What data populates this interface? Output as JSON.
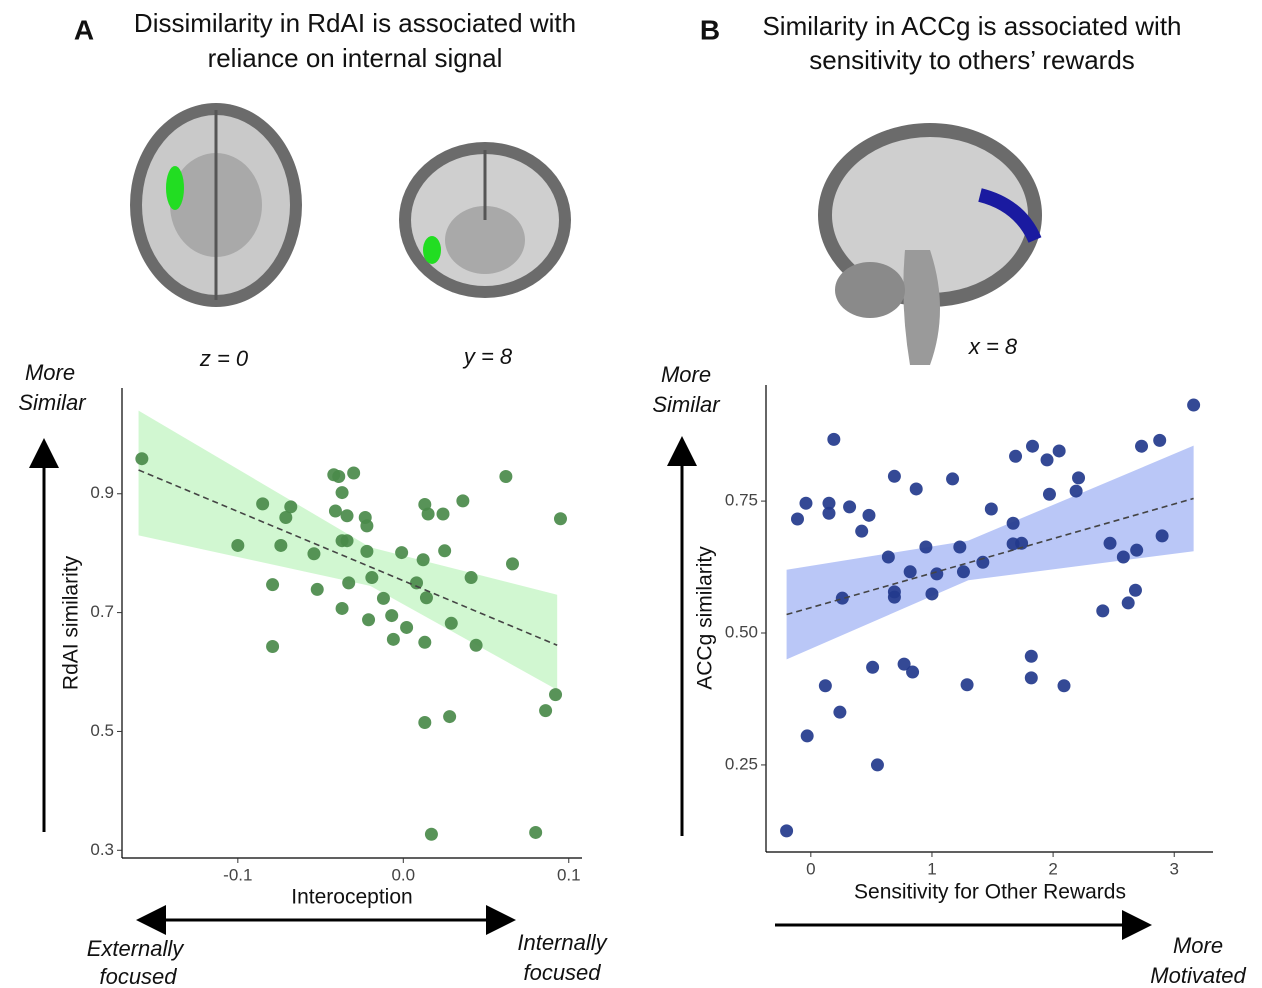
{
  "chart_data": [
    {
      "type": "scatter",
      "panel": "A",
      "title": [
        "Dissimilarity in RdAI is associated with",
        "reliance on internal signal"
      ],
      "image_labels": [
        "z = 0",
        "y = 8"
      ],
      "x_label": "Interoception",
      "y_label": "RdAI similarity",
      "y_arrow_label": [
        "More",
        "Similar"
      ],
      "x_arrow_labels": [
        [
          "Externally",
          "focused"
        ],
        [
          "Internally",
          "focused"
        ]
      ],
      "color": "#4a8a4a",
      "band_color": "#c6f5c6",
      "xlim": [
        -0.17,
        0.108
      ],
      "ylim": [
        0.287,
        1.078
      ],
      "xticks": [
        -0.1,
        {
          "value": 0,
          "label": "0.0"
        },
        0.1
      ],
      "yticks": [
        0.3,
        0.5,
        0.7,
        0.9
      ],
      "x": [
        -0.158,
        -0.1,
        -0.085,
        -0.079,
        -0.079,
        -0.074,
        -0.071,
        -0.068,
        -0.054,
        -0.052,
        -0.042,
        -0.039,
        -0.037,
        -0.041,
        -0.034,
        -0.037,
        -0.034,
        -0.03,
        -0.033,
        -0.037,
        -0.023,
        -0.022,
        -0.022,
        -0.021,
        -0.019,
        -0.012,
        -0.007,
        -0.006,
        -0.001,
        0.002,
        0.008,
        0.012,
        0.013,
        0.015,
        0.014,
        0.013,
        0.013,
        0.017,
        0.024,
        0.025,
        0.028,
        0.029,
        0.036,
        0.041,
        0.044,
        0.062,
        0.066,
        0.08,
        0.086,
        0.092,
        0.095
      ],
      "y": [
        0.959,
        0.813,
        0.883,
        0.747,
        0.643,
        0.813,
        0.86,
        0.878,
        0.799,
        0.739,
        0.932,
        0.929,
        0.902,
        0.871,
        0.863,
        0.821,
        0.821,
        0.935,
        0.75,
        0.707,
        0.86,
        0.846,
        0.803,
        0.688,
        0.759,
        0.724,
        0.695,
        0.655,
        0.801,
        0.675,
        0.75,
        0.789,
        0.882,
        0.866,
        0.725,
        0.65,
        0.515,
        0.327,
        0.866,
        0.804,
        0.525,
        0.682,
        0.888,
        0.759,
        0.645,
        0.929,
        0.782,
        0.33,
        0.535,
        0.562,
        0.858
      ],
      "fit": {
        "x": [
          -0.16,
          -0.02,
          0.093
        ],
        "y": [
          0.94,
          0.777,
          0.645
        ],
        "lower": [
          0.83,
          0.745,
          0.57
        ],
        "upper": [
          1.04,
          0.81,
          0.73
        ]
      }
    },
    {
      "type": "scatter",
      "panel": "B",
      "title": [
        "Similarity in ACCg is associated with",
        "sensitivity to others’ rewards"
      ],
      "image_labels": [
        "x = 8"
      ],
      "x_label": "Sensitivity for Other Rewards",
      "y_label": "ACCg similarity",
      "y_arrow_label": [
        "More",
        "Similar"
      ],
      "x_arrow_labels": [
        [
          "More",
          "Motivated"
        ]
      ],
      "color": "#233a8c",
      "band_color": "#a9b9f5",
      "xlim": [
        -0.37,
        3.32
      ],
      "ylim": [
        0.085,
        0.97
      ],
      "xticks": [
        0,
        1,
        2,
        3
      ],
      "yticks": [
        0.25,
        {
          "value": 0.5,
          "label": "0.50"
        },
        0.75
      ],
      "x": [
        -0.2,
        -0.11,
        -0.04,
        -0.03,
        0.12,
        0.15,
        0.15,
        0.19,
        0.24,
        0.26,
        0.32,
        0.42,
        0.48,
        0.51,
        0.55,
        0.64,
        0.69,
        0.69,
        0.69,
        0.77,
        0.82,
        0.84,
        0.87,
        0.95,
        1.0,
        1.04,
        1.17,
        1.23,
        1.26,
        1.29,
        1.42,
        1.49,
        1.67,
        1.69,
        1.67,
        1.74,
        1.82,
        1.82,
        1.83,
        1.95,
        1.97,
        2.05,
        2.09,
        2.19,
        2.21,
        2.41,
        2.47,
        2.58,
        2.62,
        2.68,
        2.69,
        2.73,
        2.88,
        2.9,
        3.16
      ],
      "y": [
        0.125,
        0.716,
        0.746,
        0.305,
        0.4,
        0.746,
        0.727,
        0.867,
        0.35,
        0.566,
        0.739,
        0.693,
        0.723,
        0.435,
        0.25,
        0.644,
        0.797,
        0.578,
        0.568,
        0.441,
        0.616,
        0.426,
        0.773,
        0.663,
        0.574,
        0.612,
        0.792,
        0.663,
        0.616,
        0.402,
        0.634,
        0.735,
        0.708,
        0.835,
        0.669,
        0.67,
        0.456,
        0.415,
        0.854,
        0.828,
        0.763,
        0.845,
        0.4,
        0.769,
        0.794,
        0.542,
        0.67,
        0.644,
        0.557,
        0.581,
        0.657,
        0.854,
        0.865,
        0.684,
        0.932
      ],
      "fit": {
        "x": [
          -0.2,
          1.3,
          3.16
        ],
        "y": [
          0.535,
          0.633,
          0.755
        ],
        "lower": [
          0.45,
          0.6,
          0.655
        ],
        "upper": [
          0.62,
          0.675,
          0.855
        ]
      }
    }
  ]
}
